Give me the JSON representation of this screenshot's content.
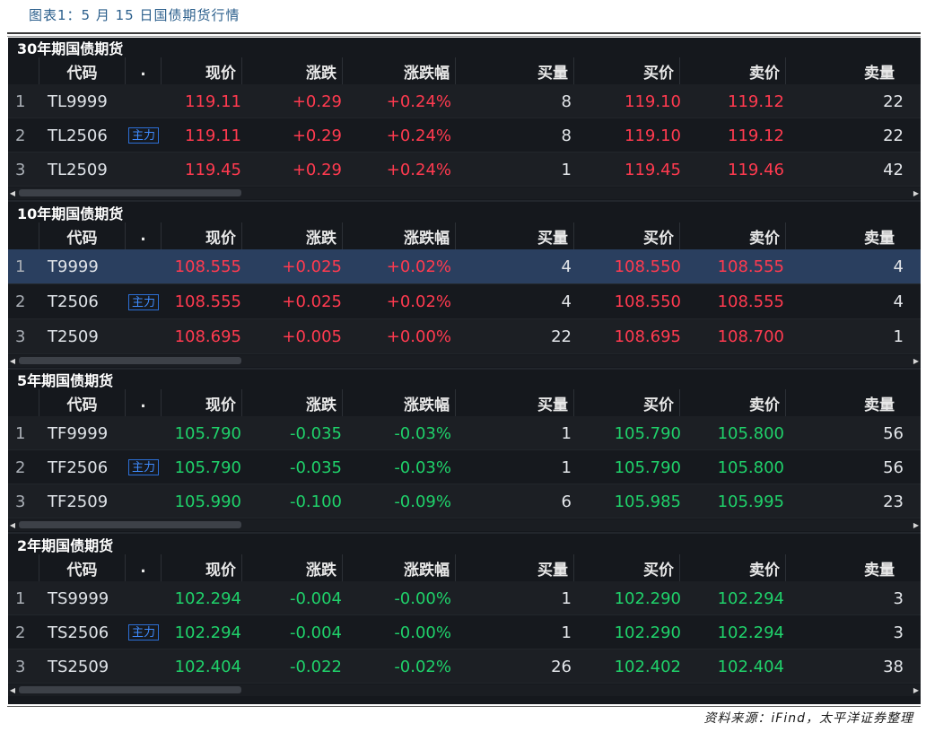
{
  "caption": "图表1：5 月 15 日国债期货行情",
  "source": "资料来源：iFind，太平洋证券整理",
  "colors": {
    "up": "#ff3a4f",
    "down": "#1fd16a",
    "badge": "#3f8cff",
    "selected": "#2a3f5f"
  },
  "headers": {
    "code": "代码",
    "dot": ".",
    "price": "现价",
    "change": "涨跌",
    "pct": "涨跌幅",
    "bid_qty": "买量",
    "bid": "买价",
    "ask": "卖价",
    "ask_qty": "卖量"
  },
  "badge_label": "主力",
  "sections": [
    {
      "title": "30年期国债期货",
      "rows": [
        {
          "idx": "1",
          "code": "TL9999",
          "badge": false,
          "price": "119.11",
          "change": "+0.29",
          "pct": "+0.24%",
          "bid_qty": "8",
          "bid": "119.10",
          "ask": "119.12",
          "ask_qty": "22",
          "trend": "up"
        },
        {
          "idx": "2",
          "code": "TL2506",
          "badge": true,
          "price": "119.11",
          "change": "+0.29",
          "pct": "+0.24%",
          "bid_qty": "8",
          "bid": "119.10",
          "ask": "119.12",
          "ask_qty": "22",
          "trend": "up"
        },
        {
          "idx": "3",
          "code": "TL2509",
          "badge": false,
          "price": "119.45",
          "change": "+0.29",
          "pct": "+0.24%",
          "bid_qty": "1",
          "bid": "119.45",
          "ask": "119.46",
          "ask_qty": "42",
          "trend": "up"
        }
      ]
    },
    {
      "title": "10年期国债期货",
      "rows": [
        {
          "idx": "1",
          "code": "T9999",
          "badge": false,
          "price": "108.555",
          "change": "+0.025",
          "pct": "+0.02%",
          "bid_qty": "4",
          "bid": "108.550",
          "ask": "108.555",
          "ask_qty": "4",
          "trend": "up",
          "selected": true
        },
        {
          "idx": "2",
          "code": "T2506",
          "badge": true,
          "price": "108.555",
          "change": "+0.025",
          "pct": "+0.02%",
          "bid_qty": "4",
          "bid": "108.550",
          "ask": "108.555",
          "ask_qty": "4",
          "trend": "up"
        },
        {
          "idx": "3",
          "code": "T2509",
          "badge": false,
          "price": "108.695",
          "change": "+0.005",
          "pct": "+0.00%",
          "bid_qty": "22",
          "bid": "108.695",
          "ask": "108.700",
          "ask_qty": "1",
          "trend": "up"
        }
      ]
    },
    {
      "title": "5年期国债期货",
      "rows": [
        {
          "idx": "1",
          "code": "TF9999",
          "badge": false,
          "price": "105.790",
          "change": "-0.035",
          "pct": "-0.03%",
          "bid_qty": "1",
          "bid": "105.790",
          "ask": "105.800",
          "ask_qty": "56",
          "trend": "down"
        },
        {
          "idx": "2",
          "code": "TF2506",
          "badge": true,
          "price": "105.790",
          "change": "-0.035",
          "pct": "-0.03%",
          "bid_qty": "1",
          "bid": "105.790",
          "ask": "105.800",
          "ask_qty": "56",
          "trend": "down"
        },
        {
          "idx": "3",
          "code": "TF2509",
          "badge": false,
          "price": "105.990",
          "change": "-0.100",
          "pct": "-0.09%",
          "bid_qty": "6",
          "bid": "105.985",
          "ask": "105.995",
          "ask_qty": "23",
          "trend": "down"
        }
      ]
    },
    {
      "title": "2年期国债期货",
      "rows": [
        {
          "idx": "1",
          "code": "TS9999",
          "badge": false,
          "price": "102.294",
          "change": "-0.004",
          "pct": "-0.00%",
          "bid_qty": "1",
          "bid": "102.290",
          "ask": "102.294",
          "ask_qty": "3",
          "trend": "down"
        },
        {
          "idx": "2",
          "code": "TS2506",
          "badge": true,
          "price": "102.294",
          "change": "-0.004",
          "pct": "-0.00%",
          "bid_qty": "1",
          "bid": "102.290",
          "ask": "102.294",
          "ask_qty": "3",
          "trend": "down"
        },
        {
          "idx": "3",
          "code": "TS2509",
          "badge": false,
          "price": "102.404",
          "change": "-0.022",
          "pct": "-0.02%",
          "bid_qty": "26",
          "bid": "102.402",
          "ask": "102.404",
          "ask_qty": "38",
          "trend": "down"
        }
      ]
    }
  ]
}
